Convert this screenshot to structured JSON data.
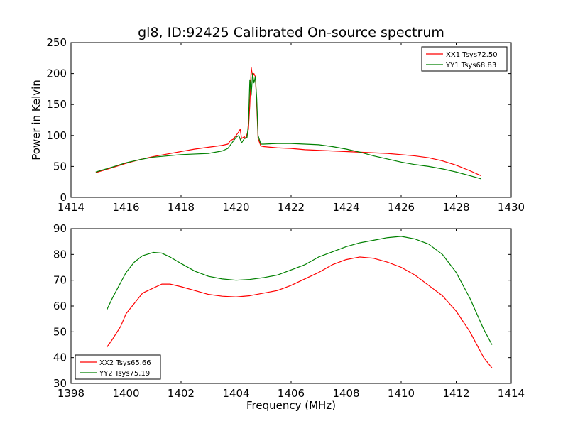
{
  "title": "gl8, ID:92425 Calibrated On-source spectrum",
  "xlabel": "Frequency (MHz)",
  "chart_data": [
    {
      "type": "line",
      "title": "gl8, ID:92425 Calibrated On-source spectrum",
      "xlabel": "",
      "ylabel": "Power in Kelvin",
      "xlim": [
        1414,
        1430
      ],
      "ylim": [
        0,
        250
      ],
      "xticks": [
        1414,
        1416,
        1418,
        1420,
        1422,
        1424,
        1426,
        1428,
        1430
      ],
      "yticks": [
        0,
        50,
        100,
        150,
        200,
        250
      ],
      "legend_position": "top-right",
      "grid": false,
      "series": [
        {
          "name": "XX1 Tsys72.50",
          "color": "#ff0000",
          "points": [
            [
              1414.9,
              40
            ],
            [
              1415.5,
              48
            ],
            [
              1416,
              55
            ],
            [
              1416.5,
              61
            ],
            [
              1417,
              66
            ],
            [
              1417.5,
              70
            ],
            [
              1418,
              74
            ],
            [
              1418.5,
              78
            ],
            [
              1419,
              81
            ],
            [
              1419.5,
              84
            ],
            [
              1419.7,
              86
            ],
            [
              1419.8,
              92
            ],
            [
              1419.9,
              94
            ],
            [
              1420.0,
              100
            ],
            [
              1420.1,
              106
            ],
            [
              1420.15,
              110
            ],
            [
              1420.2,
              95
            ],
            [
              1420.3,
              98
            ],
            [
              1420.35,
              95
            ],
            [
              1420.45,
              110
            ],
            [
              1420.5,
              150
            ],
            [
              1420.55,
              210
            ],
            [
              1420.6,
              195
            ],
            [
              1420.65,
              200
            ],
            [
              1420.7,
              195
            ],
            [
              1420.75,
              150
            ],
            [
              1420.8,
              95
            ],
            [
              1420.9,
              83
            ],
            [
              1421,
              82
            ],
            [
              1421.5,
              80
            ],
            [
              1422,
              79
            ],
            [
              1422.5,
              77
            ],
            [
              1423,
              76
            ],
            [
              1423.5,
              75
            ],
            [
              1424,
              74
            ],
            [
              1424.5,
              73
            ],
            [
              1425,
              72
            ],
            [
              1425.5,
              71
            ],
            [
              1426,
              69
            ],
            [
              1426.5,
              67
            ],
            [
              1427,
              64
            ],
            [
              1427.5,
              59
            ],
            [
              1428,
              52
            ],
            [
              1428.5,
              43
            ],
            [
              1428.9,
              35
            ]
          ]
        },
        {
          "name": "YY1 Tsys68.83",
          "color": "#008000",
          "points": [
            [
              1414.9,
              41
            ],
            [
              1415.5,
              49
            ],
            [
              1416,
              56
            ],
            [
              1416.5,
              61
            ],
            [
              1417,
              65
            ],
            [
              1417.5,
              67
            ],
            [
              1418,
              69
            ],
            [
              1418.5,
              70
            ],
            [
              1419,
              71
            ],
            [
              1419.5,
              75
            ],
            [
              1419.7,
              79
            ],
            [
              1419.85,
              88
            ],
            [
              1420.0,
              97
            ],
            [
              1420.1,
              100
            ],
            [
              1420.2,
              88
            ],
            [
              1420.3,
              95
            ],
            [
              1420.4,
              97
            ],
            [
              1420.45,
              120
            ],
            [
              1420.5,
              190
            ],
            [
              1420.55,
              165
            ],
            [
              1420.6,
              200
            ],
            [
              1420.65,
              185
            ],
            [
              1420.7,
              195
            ],
            [
              1420.75,
              160
            ],
            [
              1420.8,
              100
            ],
            [
              1420.9,
              86
            ],
            [
              1421,
              86
            ],
            [
              1421.5,
              87
            ],
            [
              1422,
              87
            ],
            [
              1422.5,
              86
            ],
            [
              1423,
              85
            ],
            [
              1423.5,
              82
            ],
            [
              1424,
              78
            ],
            [
              1424.5,
              73
            ],
            [
              1425,
              67
            ],
            [
              1425.5,
              62
            ],
            [
              1426,
              57
            ],
            [
              1426.5,
              53
            ],
            [
              1427,
              50
            ],
            [
              1427.5,
              46
            ],
            [
              1428,
              41
            ],
            [
              1428.5,
              35
            ],
            [
              1428.9,
              30
            ]
          ]
        }
      ]
    },
    {
      "type": "line",
      "title": "",
      "xlabel": "Frequency (MHz)",
      "ylabel": "",
      "xlim": [
        1398,
        1414
      ],
      "ylim": [
        30,
        90
      ],
      "xticks": [
        1398,
        1400,
        1402,
        1404,
        1406,
        1408,
        1410,
        1412,
        1414
      ],
      "yticks": [
        30,
        40,
        50,
        60,
        70,
        80,
        90
      ],
      "legend_position": "bottom-left",
      "grid": false,
      "series": [
        {
          "name": "XX2 Tsys65.66",
          "color": "#ff0000",
          "points": [
            [
              1399.3,
              44
            ],
            [
              1399.5,
              47
            ],
            [
              1399.8,
              52
            ],
            [
              1400,
              57
            ],
            [
              1400.3,
              61
            ],
            [
              1400.6,
              65
            ],
            [
              1401,
              67
            ],
            [
              1401.3,
              68.5
            ],
            [
              1401.6,
              68.5
            ],
            [
              1402,
              67.5
            ],
            [
              1402.5,
              66
            ],
            [
              1403,
              64.5
            ],
            [
              1403.5,
              63.8
            ],
            [
              1404,
              63.5
            ],
            [
              1404.5,
              64
            ],
            [
              1405,
              65
            ],
            [
              1405.5,
              66
            ],
            [
              1406,
              68
            ],
            [
              1406.5,
              70.5
            ],
            [
              1407,
              73
            ],
            [
              1407.5,
              76
            ],
            [
              1408,
              78
            ],
            [
              1408.5,
              79
            ],
            [
              1409,
              78.5
            ],
            [
              1409.5,
              77
            ],
            [
              1410,
              75
            ],
            [
              1410.5,
              72
            ],
            [
              1411,
              68
            ],
            [
              1411.5,
              64
            ],
            [
              1412,
              58
            ],
            [
              1412.5,
              50
            ],
            [
              1413,
              40
            ],
            [
              1413.3,
              36
            ]
          ]
        },
        {
          "name": "YY2 Tsys75.19",
          "color": "#008000",
          "points": [
            [
              1399.3,
              58.5
            ],
            [
              1399.5,
              63
            ],
            [
              1399.8,
              69
            ],
            [
              1400,
              73
            ],
            [
              1400.3,
              77
            ],
            [
              1400.6,
              79.5
            ],
            [
              1401,
              80.8
            ],
            [
              1401.3,
              80.5
            ],
            [
              1401.6,
              79
            ],
            [
              1402,
              76.5
            ],
            [
              1402.5,
              73.5
            ],
            [
              1403,
              71.5
            ],
            [
              1403.5,
              70.5
            ],
            [
              1404,
              70
            ],
            [
              1404.5,
              70.3
            ],
            [
              1405,
              71
            ],
            [
              1405.5,
              72
            ],
            [
              1406,
              74
            ],
            [
              1406.5,
              76
            ],
            [
              1407,
              79
            ],
            [
              1407.5,
              81
            ],
            [
              1408,
              83
            ],
            [
              1408.5,
              84.5
            ],
            [
              1409,
              85.5
            ],
            [
              1409.5,
              86.5
            ],
            [
              1410,
              87
            ],
            [
              1410.5,
              86
            ],
            [
              1411,
              84
            ],
            [
              1411.5,
              80
            ],
            [
              1412,
              73
            ],
            [
              1412.5,
              63
            ],
            [
              1413,
              51
            ],
            [
              1413.3,
              45
            ]
          ]
        }
      ]
    }
  ]
}
